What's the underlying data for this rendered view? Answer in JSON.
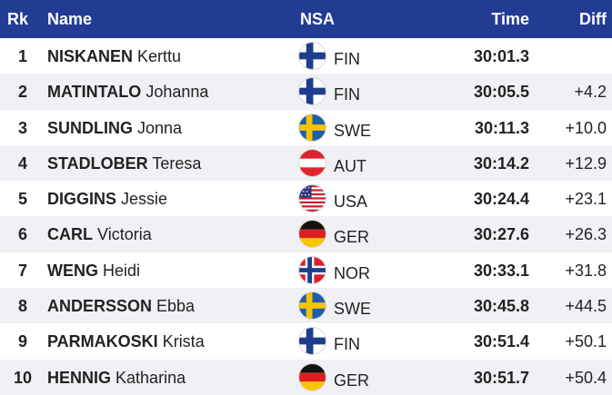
{
  "header": {
    "rank": "Rk",
    "name": "Name",
    "nsa": "NSA",
    "time": "Time",
    "diff": "Diff"
  },
  "rows": [
    {
      "rank": "1",
      "last": "NISKANEN",
      "first": "Kerttu",
      "nsa": "FIN",
      "flag": "finland-flag-icon",
      "time": "30:01.3",
      "diff": ""
    },
    {
      "rank": "2",
      "last": "MATINTALO",
      "first": "Johanna",
      "nsa": "FIN",
      "flag": "finland-flag-icon",
      "time": "30:05.5",
      "diff": "+4.2"
    },
    {
      "rank": "3",
      "last": "SUNDLING",
      "first": "Jonna",
      "nsa": "SWE",
      "flag": "sweden-flag-icon",
      "time": "30:11.3",
      "diff": "+10.0"
    },
    {
      "rank": "4",
      "last": "STADLOBER",
      "first": "Teresa",
      "nsa": "AUT",
      "flag": "austria-flag-icon",
      "time": "30:14.2",
      "diff": "+12.9"
    },
    {
      "rank": "5",
      "last": "DIGGINS",
      "first": "Jessie",
      "nsa": "USA",
      "flag": "usa-flag-icon",
      "time": "30:24.4",
      "diff": "+23.1"
    },
    {
      "rank": "6",
      "last": "CARL",
      "first": "Victoria",
      "nsa": "GER",
      "flag": "germany-flag-icon",
      "time": "30:27.6",
      "diff": "+26.3"
    },
    {
      "rank": "7",
      "last": "WENG",
      "first": "Heidi",
      "nsa": "NOR",
      "flag": "norway-flag-icon",
      "time": "30:33.1",
      "diff": "+31.8"
    },
    {
      "rank": "8",
      "last": "ANDERSSON",
      "first": "Ebba",
      "nsa": "SWE",
      "flag": "sweden-flag-icon",
      "time": "30:45.8",
      "diff": "+44.5"
    },
    {
      "rank": "9",
      "last": "PARMAKOSKI",
      "first": "Krista",
      "nsa": "FIN",
      "flag": "finland-flag-icon",
      "time": "30:51.4",
      "diff": "+50.1"
    },
    {
      "rank": "10",
      "last": "HENNIG",
      "first": "Katharina",
      "nsa": "GER",
      "flag": "germany-flag-icon",
      "time": "30:51.7",
      "diff": "+50.4"
    }
  ],
  "colors": {
    "header_bg": "#223c94",
    "header_text": "#ffffff",
    "row_alt_bg": "#eff1f5",
    "text": "#222222"
  }
}
